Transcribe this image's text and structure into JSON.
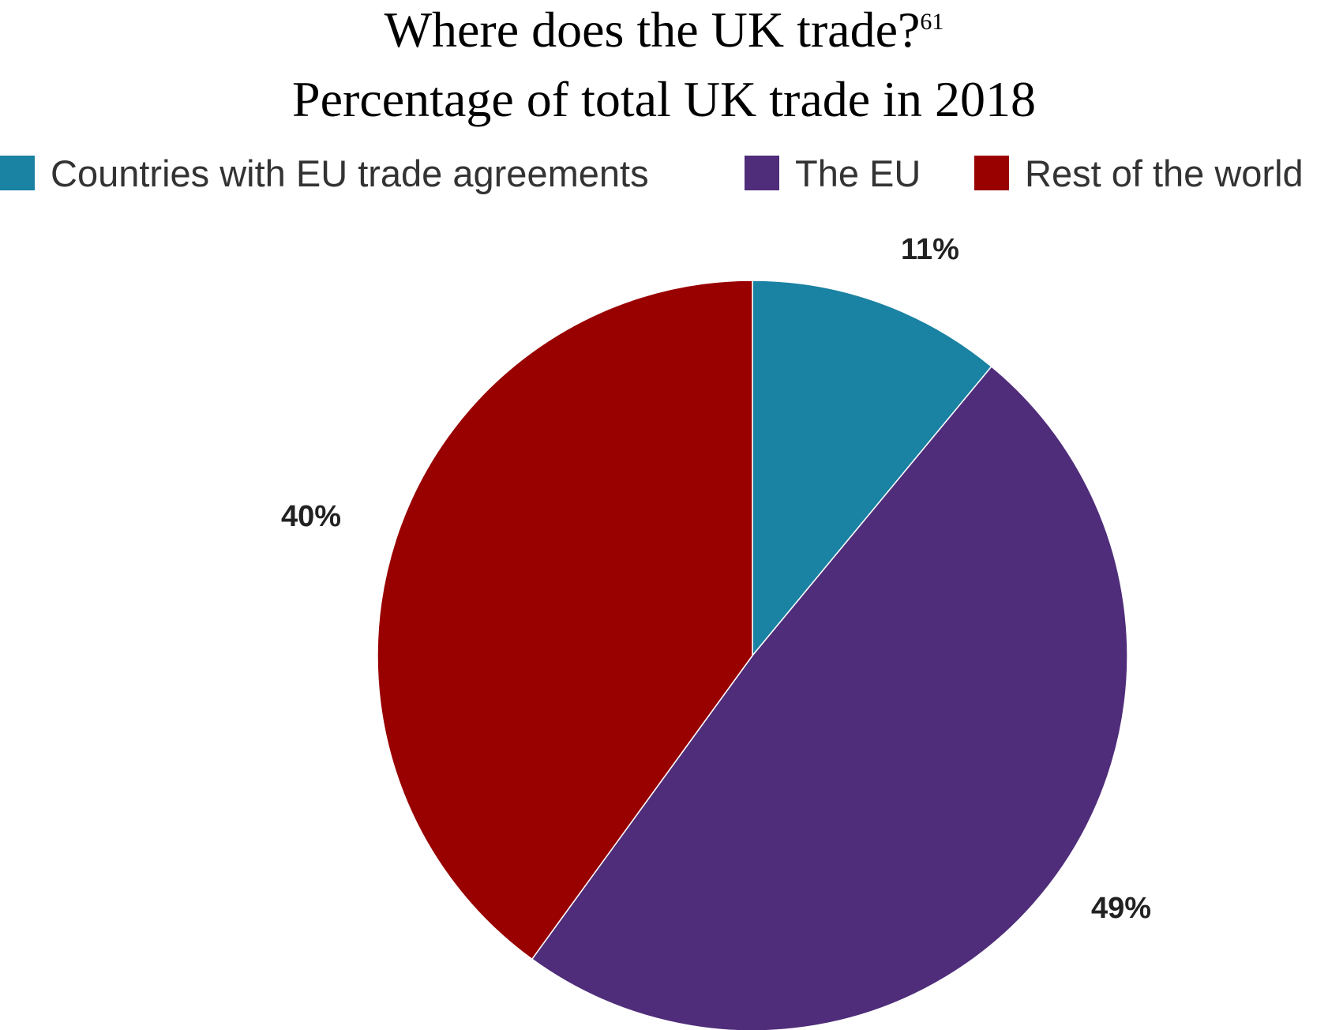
{
  "chart_data": {
    "type": "pie",
    "title": "Where does the UK trade?",
    "title_footnote": "61",
    "subtitle": "Percentage of total UK trade in 2018",
    "legend_position": "top",
    "slices": [
      {
        "name": "Countries with EU trade agreements",
        "value": 11,
        "label": "11%",
        "color": "#1a82a3"
      },
      {
        "name": "The EU",
        "value": 49,
        "label": "49%",
        "color": "#4f2d7a"
      },
      {
        "name": "Rest of the world",
        "value": 40,
        "label": "40%",
        "color": "#990000"
      }
    ]
  }
}
